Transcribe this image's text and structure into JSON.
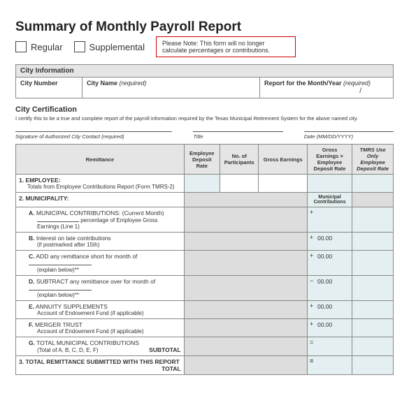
{
  "title": "Summary of Monthly Payroll Report",
  "regular_label": "Regular",
  "supplemental_label": "Supplemental",
  "note": "Please Note: This form will no longer calculate percentages or contributions.",
  "city_info": {
    "header": "City Information",
    "num_label": "City Number",
    "name_label": "City Name",
    "name_req": " (required)",
    "report_label": "Report for the Month/Year",
    "report_req": " (required)",
    "slash": "/"
  },
  "cert": {
    "title": "City Certification",
    "text": "I certify this to be a true and complete report of the payroll information required by the Texas Municipal Retirement System for the above named city.",
    "sig1": "Signature of Authorized City Contact (required)",
    "sig2": "Title",
    "sig3": "Date (MM/DD/YYYY)"
  },
  "headers": {
    "remit": "Remittance",
    "edr": "Employee Deposit Rate",
    "nop": "No. of Participants",
    "gross": "Gross Earnings",
    "ge_edr": "Gross Earnings × Employee Deposit Rate",
    "tmrs": "TMRS Use Only Employee Deposit Rate"
  },
  "rows": {
    "r1_b": "1.  EMPLOYEE:",
    "r1_s": "Totals from Employee Contributions Report  (Form TMRS-2)",
    "r2": "2.  MUNICIPALITY:",
    "r2_hdr": "Municipal Contributions",
    "rA_b": "A.",
    "rA_t": " MUNICIPAL CONTRIBUTIONS:  (Current Month)",
    "rA_s": " percentage of Employee Gross Earnings (Line 1)",
    "rB_b": "B.",
    "rB_t": " Interest on late contributions",
    "rB_s": "(if postmarked after 15th)",
    "rC_b": "C.",
    "rC_t": " ADD any remittance short for month of ",
    "rC_s": "(explain below)**",
    "rD_b": "D.",
    "rD_t": " SUBTRACT any remittance over for month of ",
    "rD_s": "(explain below)**",
    "rE_b": "E.",
    "rE_t": " ANNUITY SUPPLEMENTS",
    "rE_s": "Account of Endowment Fund  (if applicable)",
    "rF_b": "F.",
    "rF_t": " MERGER TRUST",
    "rF_s": "Account of Endowment Fund  (if applicable)",
    "rG_b": "G.",
    "rG_t": " TOTAL MUNICIPAL CONTRIBUTIONS",
    "rG_s": "(Total of A, B, C, D, E, F)",
    "subtotal": "SUBTOTAL",
    "r3": "3.   TOTAL REMITTANCE SUBMITTED WITH THIS REPORT",
    "total": "TOTAL",
    "zero": "00.00",
    "plus": "+",
    "minus": "−",
    "eq": "="
  }
}
